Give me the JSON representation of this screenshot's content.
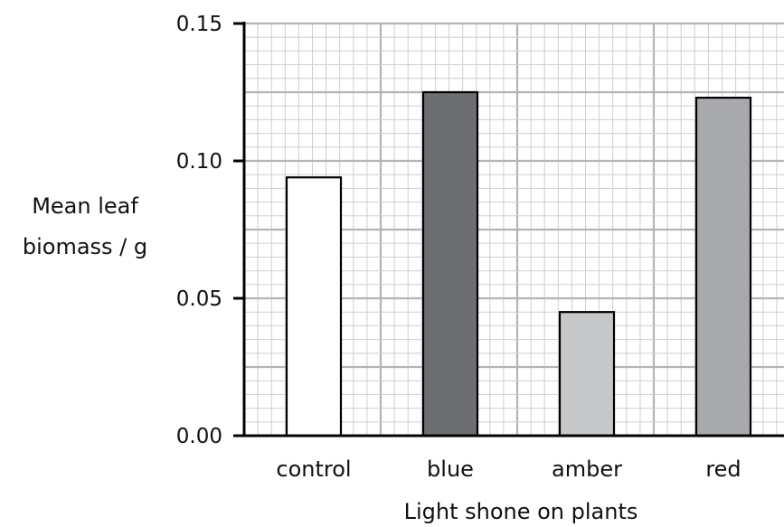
{
  "chart_data": {
    "type": "bar",
    "xlabel": "Light shone on plants",
    "ylabel_lines": [
      "Mean leaf",
      "biomass / g"
    ],
    "ylim": [
      0,
      0.15
    ],
    "yticks": [
      "0.00",
      "0.05",
      "0.10",
      "0.15"
    ],
    "categories": [
      "control",
      "blue",
      "amber",
      "red"
    ],
    "values": [
      0.094,
      0.125,
      0.045,
      0.123
    ],
    "bar_colors": [
      "#ffffff",
      "#6d6e71",
      "#c7c8ca",
      "#a7a9ac"
    ],
    "grid": true
  }
}
